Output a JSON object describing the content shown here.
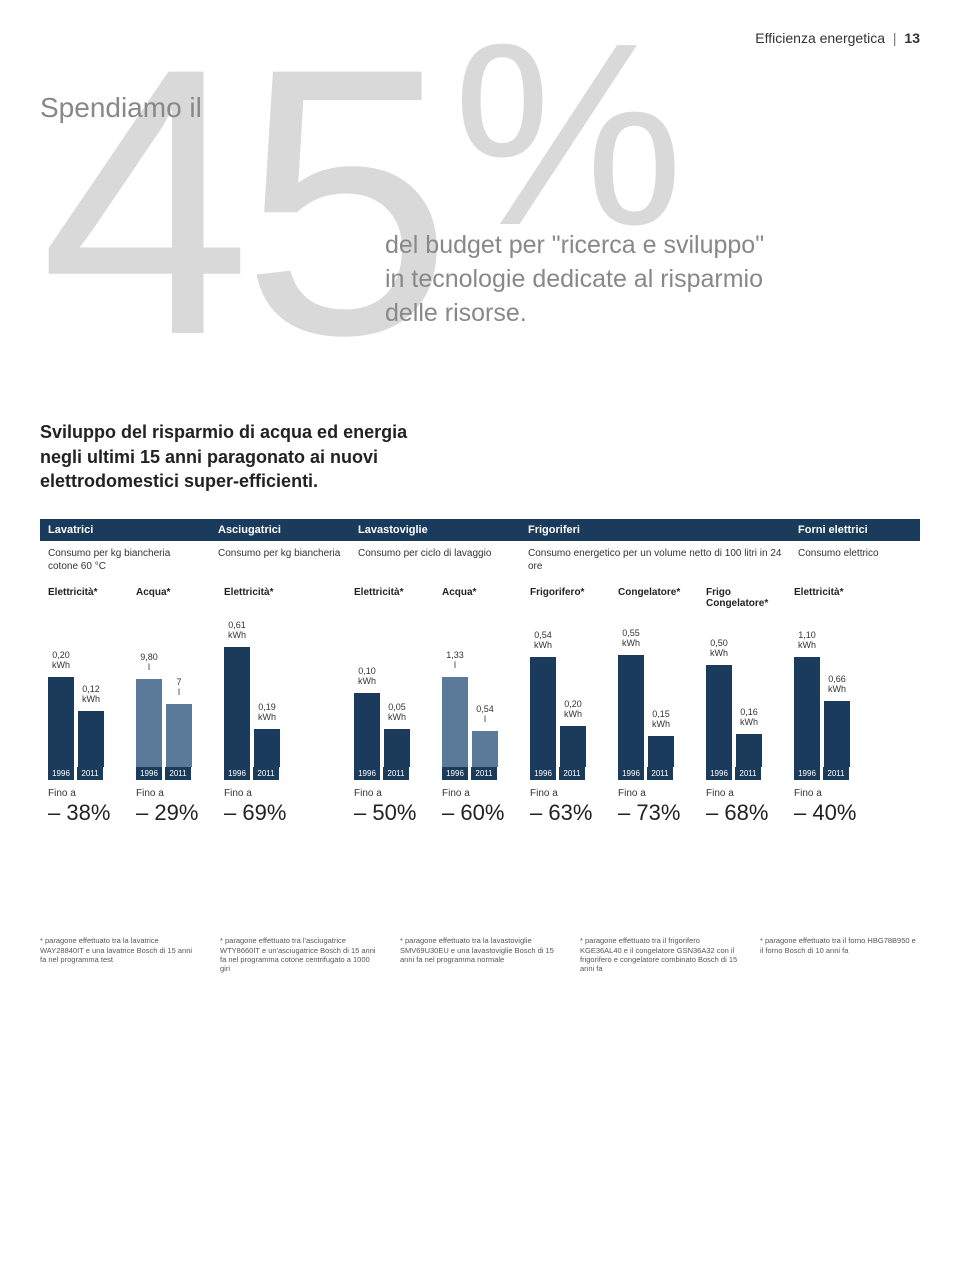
{
  "header": {
    "section": "Efficienza energetica",
    "page_number": "13"
  },
  "hero": {
    "lead": "Spendiamo il",
    "figure": "45",
    "percent": "%",
    "sub1": "del budget per \"ricerca e sviluppo\"",
    "sub2": "in tecnologie dedicate al risparmio",
    "sub3": "delle risorse."
  },
  "intro": "Sviluppo del risparmio di acqua ed energia negli ultimi 15 anni paragonato ai nuovi elettrodomestici super-efficienti.",
  "categories": [
    {
      "name": "Lavatrici",
      "desc": "Consumo per kg biancheria cotone 60 °C"
    },
    {
      "name": "Asciugatrici",
      "desc": "Consumo per kg biancheria"
    },
    {
      "name": "Lavastoviglie",
      "desc": "Consumo per ciclo di lavaggio"
    },
    {
      "name": "Frigoriferi",
      "desc": "Consumo energetico per un volume netto di 100 litri in 24 ore"
    },
    {
      "name": "Forni elettrici",
      "desc": "Consumo elettrico"
    }
  ],
  "metrics": [
    "Elettricità*",
    "Acqua*",
    "Elettricità*",
    "Elettricità*",
    "Acqua*",
    "Frigorifero*",
    "Congelatore*",
    "Frigo Congelatore*",
    "Elettricità*"
  ],
  "groups": [
    {
      "v1996": "0,20 kWh",
      "v2011": "0,12 kWh",
      "h1996": 90,
      "h2011": 56,
      "saving": "– 38%",
      "color": "dark"
    },
    {
      "v1996": "9,80 l",
      "v2011": "7 l",
      "h1996": 88,
      "h2011": 63,
      "saving": "– 29%",
      "color": "light"
    },
    {
      "v1996": "0,61 kWh",
      "v2011": "0,19 kWh",
      "h1996": 120,
      "h2011": 38,
      "saving": "– 69%",
      "color": "dark"
    },
    {
      "v1996": "0,10 kWh",
      "v2011": "0,05 kWh",
      "h1996": 74,
      "h2011": 38,
      "saving": "– 50%",
      "color": "dark"
    },
    {
      "v1996": "1,33 l",
      "v2011": "0,54 l",
      "h1996": 90,
      "h2011": 36,
      "saving": "– 60%",
      "color": "light"
    },
    {
      "v1996": "0,54 kWh",
      "v2011": "0,20 kWh",
      "h1996": 110,
      "h2011": 41,
      "saving": "– 63%",
      "color": "dark"
    },
    {
      "v1996": "0,55 kWh",
      "v2011": "0,15 kWh",
      "h1996": 112,
      "h2011": 31,
      "saving": "– 73%",
      "color": "dark"
    },
    {
      "v1996": "0,50 kWh",
      "v2011": "0,16 kWh",
      "h1996": 102,
      "h2011": 33,
      "saving": "– 68%",
      "color": "dark"
    },
    {
      "v1996": "1,10 kWh",
      "v2011": "0,66 kWh",
      "h1996": 110,
      "h2011": 66,
      "saving": "– 40%",
      "color": "dark"
    }
  ],
  "years": {
    "old": "1996",
    "new": "2011"
  },
  "fino": "Fino a",
  "footnotes": [
    "* paragone effettuato tra la lavatrice WAY28840IT e una lavatrice Bosch di 15 anni fa nel programma test",
    "* paragone effettuato tra l'asciugatrice WTY8660IT e un'asciugatrice Bosch di 15 anni fa nel programma cotone centrifugato a 1000 giri",
    "* paragone effettuato tra la lavastoviglie SMV69U30EU e una lavastoviglie Bosch di 15 anni fa nel programma normale",
    "* paragone effettuato tra il frigorifero KGE36AL40 e il congelatore GSN36A32 con il frigorifero e congelatore combinato Bosch di 15 anni fa",
    "* paragone effettuato tra il forno HBG78B950 e il forno Bosch di 10 anni fa"
  ],
  "colors": {
    "bar_dark": "#1a3b5c",
    "bar_light": "#5b7a99",
    "hero_gray": "#d9d9d9",
    "text_gray": "#888888"
  }
}
